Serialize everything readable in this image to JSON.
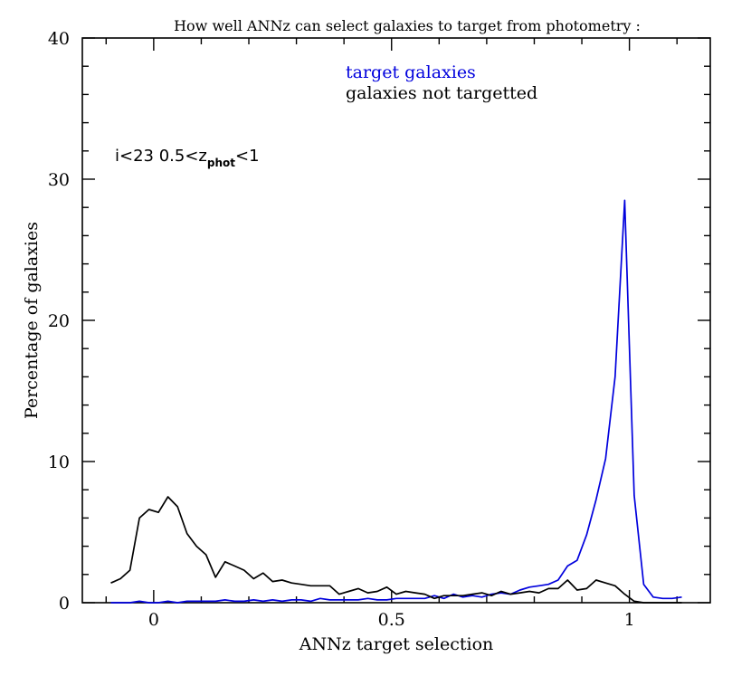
{
  "chart_data": {
    "type": "line",
    "title": "How well ANNz can select galaxies to target from photometry :",
    "xlabel": "ANNz target selection",
    "ylabel": "Percentage of galaxies",
    "xlim": [
      -0.15,
      1.17
    ],
    "ylim": [
      0,
      40
    ],
    "x_ticks": [
      0,
      0.5,
      1
    ],
    "x_tick_labels": [
      "0",
      "0.5",
      "1"
    ],
    "y_ticks": [
      0,
      10,
      20,
      30,
      40
    ],
    "y_tick_labels": [
      "0",
      "10",
      "20",
      "30",
      "40"
    ],
    "grid": false,
    "annotation": {
      "prefix": "i<23   0.5<z",
      "subscript": "phot",
      "suffix": "<1"
    },
    "series": [
      {
        "name": "target galaxies",
        "color": "#0000dd",
        "x": [
          -0.09,
          -0.07,
          -0.05,
          -0.03,
          -0.01,
          0.01,
          0.03,
          0.05,
          0.07,
          0.09,
          0.11,
          0.13,
          0.15,
          0.17,
          0.19,
          0.21,
          0.23,
          0.25,
          0.27,
          0.29,
          0.31,
          0.33,
          0.35,
          0.37,
          0.39,
          0.41,
          0.43,
          0.45,
          0.47,
          0.49,
          0.51,
          0.53,
          0.55,
          0.57,
          0.59,
          0.61,
          0.63,
          0.65,
          0.67,
          0.69,
          0.71,
          0.73,
          0.75,
          0.77,
          0.79,
          0.81,
          0.83,
          0.85,
          0.87,
          0.89,
          0.91,
          0.93,
          0.95,
          0.97,
          0.99,
          1.01,
          1.03,
          1.05,
          1.07,
          1.09,
          1.11
        ],
        "y": [
          0.0,
          0.0,
          0.0,
          0.1,
          0.0,
          0.0,
          0.1,
          0.0,
          0.1,
          0.1,
          0.1,
          0.1,
          0.2,
          0.1,
          0.1,
          0.2,
          0.1,
          0.2,
          0.1,
          0.2,
          0.2,
          0.1,
          0.3,
          0.2,
          0.2,
          0.2,
          0.2,
          0.3,
          0.2,
          0.2,
          0.3,
          0.3,
          0.3,
          0.3,
          0.5,
          0.3,
          0.6,
          0.4,
          0.5,
          0.4,
          0.6,
          0.7,
          0.6,
          0.9,
          1.1,
          1.2,
          1.3,
          1.6,
          2.6,
          3.0,
          4.8,
          7.3,
          10.2,
          16.0,
          28.5,
          7.6,
          1.3,
          0.4,
          0.3,
          0.3,
          0.4
        ]
      },
      {
        "name": "galaxies not targetted",
        "color": "#000000",
        "x": [
          -0.09,
          -0.07,
          -0.05,
          -0.03,
          -0.01,
          0.01,
          0.03,
          0.05,
          0.07,
          0.09,
          0.11,
          0.13,
          0.15,
          0.17,
          0.19,
          0.21,
          0.23,
          0.25,
          0.27,
          0.29,
          0.31,
          0.33,
          0.35,
          0.37,
          0.39,
          0.41,
          0.43,
          0.45,
          0.47,
          0.49,
          0.51,
          0.53,
          0.55,
          0.57,
          0.59,
          0.61,
          0.63,
          0.65,
          0.67,
          0.69,
          0.71,
          0.73,
          0.75,
          0.77,
          0.79,
          0.81,
          0.83,
          0.85,
          0.87,
          0.89,
          0.91,
          0.93,
          0.95,
          0.97,
          0.99,
          1.01,
          1.03,
          1.05,
          1.07,
          1.09,
          1.11
        ],
        "y": [
          1.4,
          1.7,
          2.3,
          6.0,
          6.6,
          6.4,
          7.5,
          6.8,
          4.9,
          4.0,
          3.4,
          1.8,
          2.9,
          2.6,
          2.3,
          1.7,
          2.1,
          1.5,
          1.6,
          1.4,
          1.3,
          1.2,
          1.2,
          1.2,
          0.6,
          0.8,
          1.0,
          0.7,
          0.8,
          1.1,
          0.6,
          0.8,
          0.7,
          0.6,
          0.3,
          0.5,
          0.5,
          0.5,
          0.6,
          0.7,
          0.5,
          0.8,
          0.6,
          0.7,
          0.8,
          0.7,
          1.0,
          1.0,
          1.6,
          0.9,
          1.0,
          1.6,
          1.4,
          1.2,
          0.6,
          0.1,
          0.0,
          0.0,
          0.0,
          0.0,
          0.0
        ]
      }
    ]
  }
}
